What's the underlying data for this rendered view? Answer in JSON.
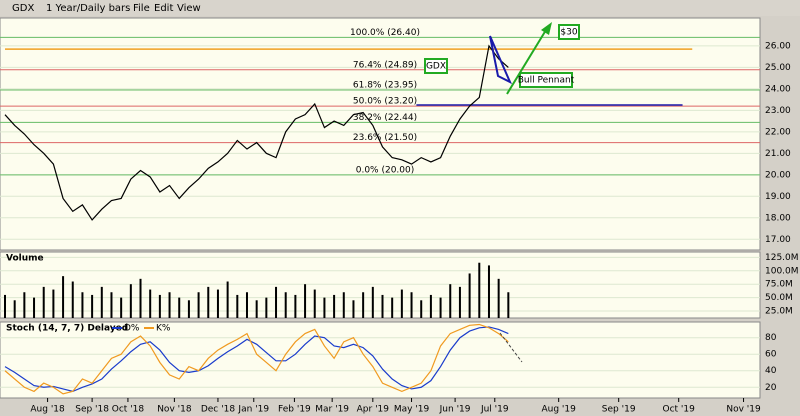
{
  "toolbar": {
    "symbol": "GDX",
    "period": "1 Year/Daily bars",
    "menu": [
      "File",
      "Edit",
      "View"
    ]
  },
  "chart_data": [
    {
      "type": "line",
      "color": "#000000",
      "ylim": [
        16.5,
        27.3
      ],
      "yticks": [
        {
          "value": 17,
          "label": "17.00"
        },
        {
          "value": 18,
          "label": "18.00"
        },
        {
          "value": 19,
          "label": "19.00"
        },
        {
          "value": 20,
          "label": "20.00"
        },
        {
          "value": 21,
          "label": "21.00"
        },
        {
          "value": 22,
          "label": "22.00"
        },
        {
          "value": 23,
          "label": "23.00"
        },
        {
          "value": 24,
          "label": "24.00"
        },
        {
          "value": 25,
          "label": "25.00"
        },
        {
          "value": 26,
          "label": "26.00"
        }
      ],
      "series": [
        {
          "values": [
            22.8,
            22.3,
            21.9,
            21.4,
            21.0,
            20.5,
            18.9,
            18.3,
            18.6,
            17.9,
            18.4,
            18.8,
            18.9,
            19.8,
            20.2,
            19.9,
            19.2,
            19.5,
            18.9,
            19.4,
            19.8,
            20.3,
            20.6,
            21.0,
            21.6,
            21.2,
            21.5,
            21.0,
            20.8,
            22.0,
            22.6,
            22.8,
            23.3,
            22.2,
            22.5,
            22.3,
            22.8,
            22.9,
            22.3,
            21.3,
            20.8,
            20.7,
            20.5,
            20.8,
            20.6,
            20.8,
            21.8,
            22.6,
            23.2,
            23.6,
            26.0,
            25.4,
            25.0
          ]
        }
      ],
      "fib_levels": [
        {
          "value": 26.4,
          "label": "100.0% (26.40)",
          "color": "#66bb66"
        },
        {
          "value": 24.89,
          "label": "76.4% (24.89)",
          "color": "#dd6666"
        },
        {
          "value": 23.95,
          "label": "61.8% (23.95)",
          "color": "#66bb66"
        },
        {
          "value": 23.2,
          "label": "50.0% (23.20)",
          "color": "#dd6666"
        },
        {
          "value": 22.44,
          "label": "38.2% (22.44)",
          "color": "#66bb66"
        },
        {
          "value": 21.5,
          "label": "23.6% (21.50)",
          "color": "#dd6666"
        },
        {
          "value": 20.0,
          "label": "0.0% (20.00)",
          "color": "#66bb66"
        }
      ],
      "reference_lines": [
        {
          "value": 25.85,
          "color": "#f0a020",
          "x": [
            0,
            71
          ]
        },
        {
          "value": 23.25,
          "color": "#1a1aaa",
          "x": [
            42.5,
            70
          ]
        }
      ],
      "annotations": [
        "GDX",
        "Bull Pennant",
        "$30"
      ]
    },
    {
      "type": "bar",
      "title": "Volume",
      "color": "#000000",
      "ylim": [
        12,
        135
      ],
      "yticks": [
        {
          "value": 25,
          "label": "25.0M"
        },
        {
          "value": 50,
          "label": "50.0M"
        },
        {
          "value": 75,
          "label": "75.0M"
        },
        {
          "value": 100,
          "label": "100.0M"
        },
        {
          "value": 125,
          "label": "125.0M"
        }
      ],
      "values": [
        55,
        45,
        60,
        50,
        70,
        65,
        90,
        80,
        60,
        55,
        70,
        60,
        50,
        75,
        85,
        65,
        55,
        60,
        50,
        45,
        60,
        70,
        65,
        80,
        55,
        60,
        45,
        50,
        70,
        60,
        55,
        75,
        65,
        50,
        55,
        60,
        45,
        60,
        70,
        55,
        50,
        65,
        60,
        45,
        55,
        50,
        75,
        70,
        95,
        115,
        110,
        85,
        60
      ]
    },
    {
      "type": "line",
      "title": "Stoch (14, 7, 7) Delayed",
      "ylim": [
        7,
        99
      ],
      "yticks": [
        20,
        40,
        60,
        80
      ],
      "xlim": [
        0,
        78
      ],
      "xticks": [
        {
          "value": 4.4,
          "label": "Aug '18"
        },
        {
          "value": 9,
          "label": "Sep '18"
        },
        {
          "value": 12.7,
          "label": "Oct '18"
        },
        {
          "value": 17.5,
          "label": "Nov '18"
        },
        {
          "value": 22,
          "label": "Dec '18"
        },
        {
          "value": 25.7,
          "label": "Jan '19"
        },
        {
          "value": 29.9,
          "label": "Feb '19"
        },
        {
          "value": 33.8,
          "label": "Mar '19"
        },
        {
          "value": 38,
          "label": "Apr '19"
        },
        {
          "value": 42,
          "label": "May '19"
        },
        {
          "value": 46.5,
          "label": "Jun '19"
        },
        {
          "value": 50.6,
          "label": "Jul '19"
        },
        {
          "value": 57.2,
          "label": "Aug '19"
        },
        {
          "value": 63.4,
          "label": "Sep '19"
        },
        {
          "value": 69.6,
          "label": "Oct '19"
        },
        {
          "value": 76.3,
          "label": "Nov '19"
        }
      ],
      "series": [
        {
          "name": "D%",
          "color": "#1a3ccc",
          "values": [
            45,
            38,
            30,
            22,
            20,
            21,
            18,
            15,
            20,
            24,
            30,
            42,
            52,
            63,
            72,
            75,
            65,
            50,
            40,
            38,
            40,
            46,
            55,
            63,
            70,
            78,
            72,
            62,
            52,
            52,
            60,
            72,
            82,
            80,
            70,
            68,
            72,
            68,
            58,
            42,
            30,
            22,
            18,
            20,
            28,
            45,
            65,
            80,
            88,
            92,
            93,
            90,
            85
          ]
        },
        {
          "name": "K%",
          "color": "#f09a20",
          "values": [
            40,
            30,
            20,
            15,
            25,
            20,
            12,
            15,
            30,
            25,
            40,
            55,
            60,
            75,
            82,
            70,
            50,
            35,
            30,
            45,
            40,
            55,
            65,
            72,
            78,
            85,
            60,
            50,
            40,
            60,
            75,
            85,
            90,
            70,
            55,
            75,
            80,
            60,
            45,
            25,
            20,
            15,
            20,
            25,
            40,
            70,
            85,
            90,
            95,
            96,
            92,
            85,
            75
          ]
        }
      ]
    }
  ]
}
